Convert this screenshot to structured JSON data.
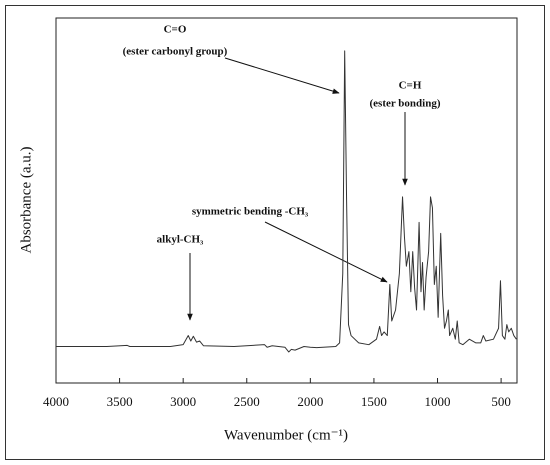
{
  "chart_data": {
    "type": "line",
    "xlabel": "Wavenumber (cm⁻¹)",
    "ylabel": "Absorbance (a.u.)",
    "annotations": [
      "C=O",
      "(ester carbonyl group)",
      "C=H",
      "(ester bonding)",
      "symmetric bending -CH₃",
      "alkyl-CH₃"
    ],
    "xlim": [
      4000,
      375
    ],
    "ylim": [
      0,
      1
    ],
    "xticks": [
      4000,
      3500,
      3000,
      2500,
      2000,
      1500,
      1000,
      500
    ],
    "series": [
      {
        "color": "#333333",
        "x": [
          4000,
          3600,
          3440,
          3420,
          3100,
          3000,
          2960,
          2940,
          2920,
          2895,
          2870,
          2840,
          2600,
          2360,
          2340,
          2300,
          2200,
          2170,
          2150,
          2120,
          2050,
          2000,
          1950,
          1800,
          1770,
          1745,
          1730,
          1715,
          1700,
          1680,
          1620,
          1540,
          1480,
          1455,
          1440,
          1420,
          1395,
          1375,
          1360,
          1330,
          1300,
          1275,
          1260,
          1245,
          1225,
          1210,
          1195,
          1180,
          1165,
          1145,
          1130,
          1118,
          1105,
          1090,
          1070,
          1055,
          1040,
          1025,
          1010,
          995,
          975,
          960,
          945,
          930,
          915,
          905,
          880,
          860,
          845,
          830,
          800,
          750,
          700,
          660,
          640,
          620,
          560,
          520,
          505,
          490,
          470,
          455,
          440,
          420,
          400,
          380
        ],
        "values": [
          0.1,
          0.1,
          0.103,
          0.1,
          0.1,
          0.105,
          0.13,
          0.115,
          0.128,
          0.112,
          0.115,
          0.102,
          0.1,
          0.105,
          0.098,
          0.102,
          0.098,
          0.085,
          0.092,
          0.09,
          0.1,
          0.098,
          0.097,
          0.1,
          0.11,
          0.3,
          0.91,
          0.5,
          0.16,
          0.13,
          0.11,
          0.105,
          0.12,
          0.155,
          0.13,
          0.14,
          0.13,
          0.27,
          0.17,
          0.2,
          0.3,
          0.51,
          0.4,
          0.32,
          0.36,
          0.25,
          0.36,
          0.26,
          0.2,
          0.44,
          0.25,
          0.33,
          0.2,
          0.29,
          0.36,
          0.51,
          0.48,
          0.27,
          0.32,
          0.18,
          0.41,
          0.24,
          0.15,
          0.17,
          0.2,
          0.13,
          0.15,
          0.12,
          0.17,
          0.11,
          0.105,
          0.12,
          0.11,
          0.11,
          0.13,
          0.115,
          0.12,
          0.15,
          0.28,
          0.13,
          0.12,
          0.16,
          0.14,
          0.15,
          0.13,
          0.12
        ]
      }
    ]
  }
}
